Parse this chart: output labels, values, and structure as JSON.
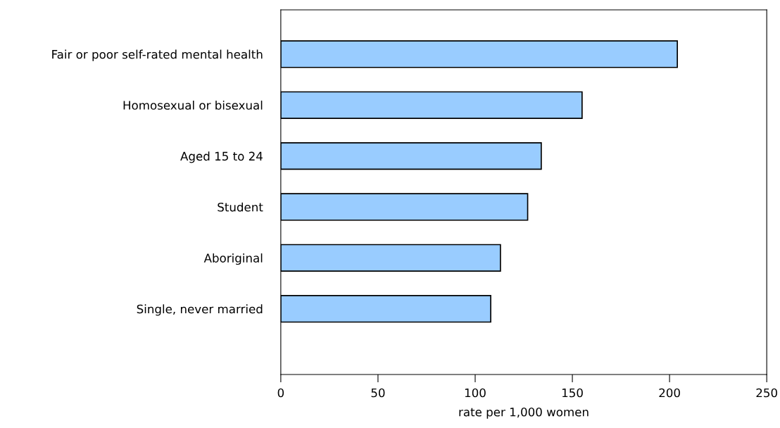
{
  "chart_data": {
    "type": "bar",
    "orientation": "horizontal",
    "xlabel": "rate per 1,000 women",
    "categories": [
      "Fair or poor self-rated mental health",
      "Homosexual or bisexual",
      "Aged 15 to 24",
      "Student",
      "Aboriginal",
      "Single, never married"
    ],
    "values": [
      204,
      155,
      134,
      127,
      113,
      108
    ],
    "color": "#99ccff",
    "xlim": [
      0,
      250
    ],
    "xticks": [
      0,
      50,
      100,
      150,
      200,
      250
    ],
    "grid": false,
    "legend": false
  }
}
